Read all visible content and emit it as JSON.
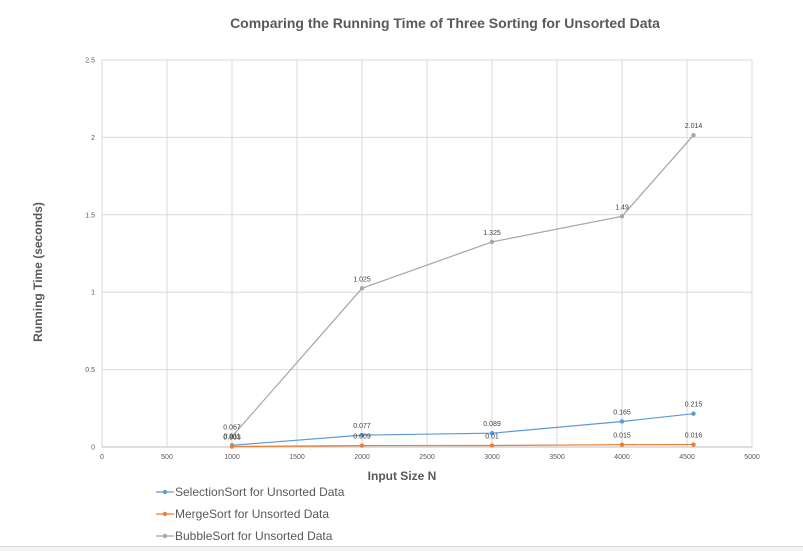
{
  "chart_data": {
    "type": "line",
    "title": "Comparing the Running Time of Three Sorting for Unsorted Data",
    "xlabel": "Input Size N",
    "ylabel": "Running Time (seconds)",
    "xlim": [
      0,
      5000
    ],
    "ylim": [
      0,
      2.5
    ],
    "x_ticks": [
      "0",
      "500",
      "1000",
      "1500",
      "2000",
      "2500",
      "3000",
      "3500",
      "4000",
      "4500",
      "5000"
    ],
    "y_ticks": [
      "0",
      "0.5",
      "1",
      "1.5",
      "2",
      "2.5"
    ],
    "grid": true,
    "legend_position": "bottom-left",
    "series": [
      {
        "name": "SelectionSort for Unsorted Data",
        "color": "#5b9bd5",
        "x": [
          1000,
          2000,
          3000,
          4000,
          4550
        ],
        "values": [
          0.011,
          0.077,
          0.089,
          0.165,
          0.215
        ],
        "labels": [
          "0.011",
          "0.077",
          "0.089",
          "0.165",
          "0.215"
        ]
      },
      {
        "name": "MergeSort for Unsorted Data",
        "color": "#ed7d31",
        "x": [
          1000,
          2000,
          3000,
          4000,
          4550
        ],
        "values": [
          0.003,
          0.009,
          0.01,
          0.015,
          0.016
        ],
        "labels": [
          "0.003",
          "0.009",
          "0.01",
          "0.015",
          "0.016"
        ]
      },
      {
        "name": "BubbleSort for Unsorted Data",
        "color": "#a5a5a5",
        "x": [
          1000,
          2000,
          3000,
          4000,
          4550
        ],
        "values": [
          0.067,
          1.025,
          1.325,
          1.49,
          2.014
        ],
        "labels": [
          "0.067",
          "1.025",
          "1.325",
          "1.49",
          "2.014"
        ]
      }
    ]
  }
}
